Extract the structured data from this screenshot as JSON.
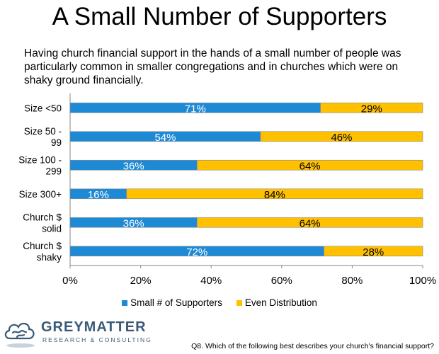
{
  "title": "A Small Number of Supporters",
  "subtitle": "Having church financial support in the hands of a small number of people was particularly common in smaller congregations and in churches which were on shaky ground financially.",
  "footnote": "Q8. Which of the following best describes your church's financial support?",
  "logo": {
    "name": "GREYMATTER",
    "tagline": "RESEARCH & CONSULTING"
  },
  "colors": {
    "small": "#1e8ad6",
    "even": "#ffc000",
    "bar_border": "#8a8a8a"
  },
  "chart_data": {
    "type": "bar",
    "orientation": "horizontal",
    "stacked": true,
    "categories": [
      [
        "Size <50"
      ],
      [
        "Size 50 -",
        "99"
      ],
      [
        "Size 100 -",
        "299"
      ],
      [
        "Size 300+"
      ],
      [
        "Church $",
        "solid"
      ],
      [
        "Church $",
        "shaky"
      ]
    ],
    "series": [
      {
        "name": "Small # of Supporters",
        "values": [
          71,
          54,
          36,
          16,
          36,
          72
        ]
      },
      {
        "name": "Even Distribution",
        "values": [
          29,
          46,
          64,
          84,
          64,
          28
        ]
      }
    ],
    "xlim": [
      0,
      100
    ],
    "xticks": [
      "0%",
      "20%",
      "40%",
      "60%",
      "80%",
      "100%"
    ],
    "value_suffix": "%",
    "legend_position": "bottom"
  }
}
